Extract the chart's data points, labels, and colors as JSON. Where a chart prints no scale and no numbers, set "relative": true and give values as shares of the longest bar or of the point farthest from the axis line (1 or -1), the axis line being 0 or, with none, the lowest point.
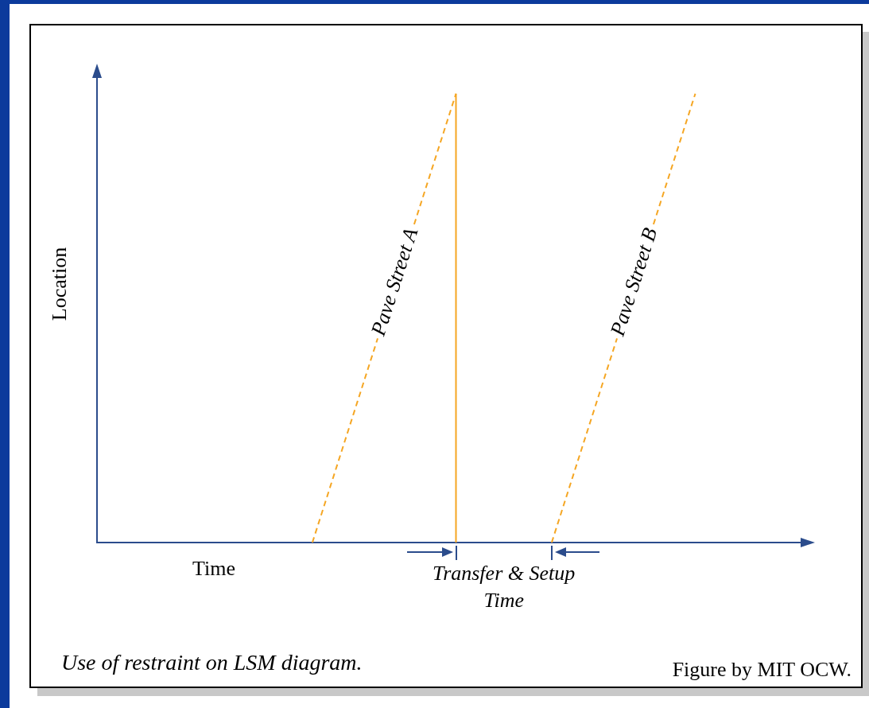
{
  "chart_data": {
    "type": "line",
    "relative": true,
    "xlabel": "Time",
    "ylabel": "Location",
    "categories": [
      null,
      null,
      null,
      null,
      null,
      null,
      null,
      null,
      null,
      null,
      null,
      null,
      null,
      null,
      null,
      null,
      null,
      null,
      null,
      null,
      null,
      null,
      null,
      null,
      null,
      null,
      null,
      null,
      null,
      null,
      null
    ],
    "series": [
      {
        "name": "Pave Street A",
        "color": "#f5a623",
        "values": [
          null,
          null,
          null,
          null,
          null,
          null,
          null,
          null,
          null,
          0,
          null,
          null,
          null,
          null,
          null,
          1,
          null,
          null,
          null,
          null,
          null,
          null,
          null,
          null,
          null,
          null,
          null,
          null,
          null,
          null,
          null
        ]
      },
      {
        "name": "Pave Street B",
        "color": "#f5a623",
        "values": [
          null,
          null,
          null,
          null,
          null,
          null,
          null,
          null,
          null,
          null,
          null,
          null,
          null,
          null,
          null,
          null,
          null,
          null,
          null,
          0,
          null,
          null,
          null,
          null,
          null,
          1,
          null,
          null,
          null,
          null,
          null
        ]
      }
    ],
    "annotations": [
      "Transfer & Setup Time",
      "Use of restraint on LSM diagram.",
      "Figure by MIT OCW."
    ],
    "line_style": "dashed",
    "marker": "none",
    "legend": false
  }
}
